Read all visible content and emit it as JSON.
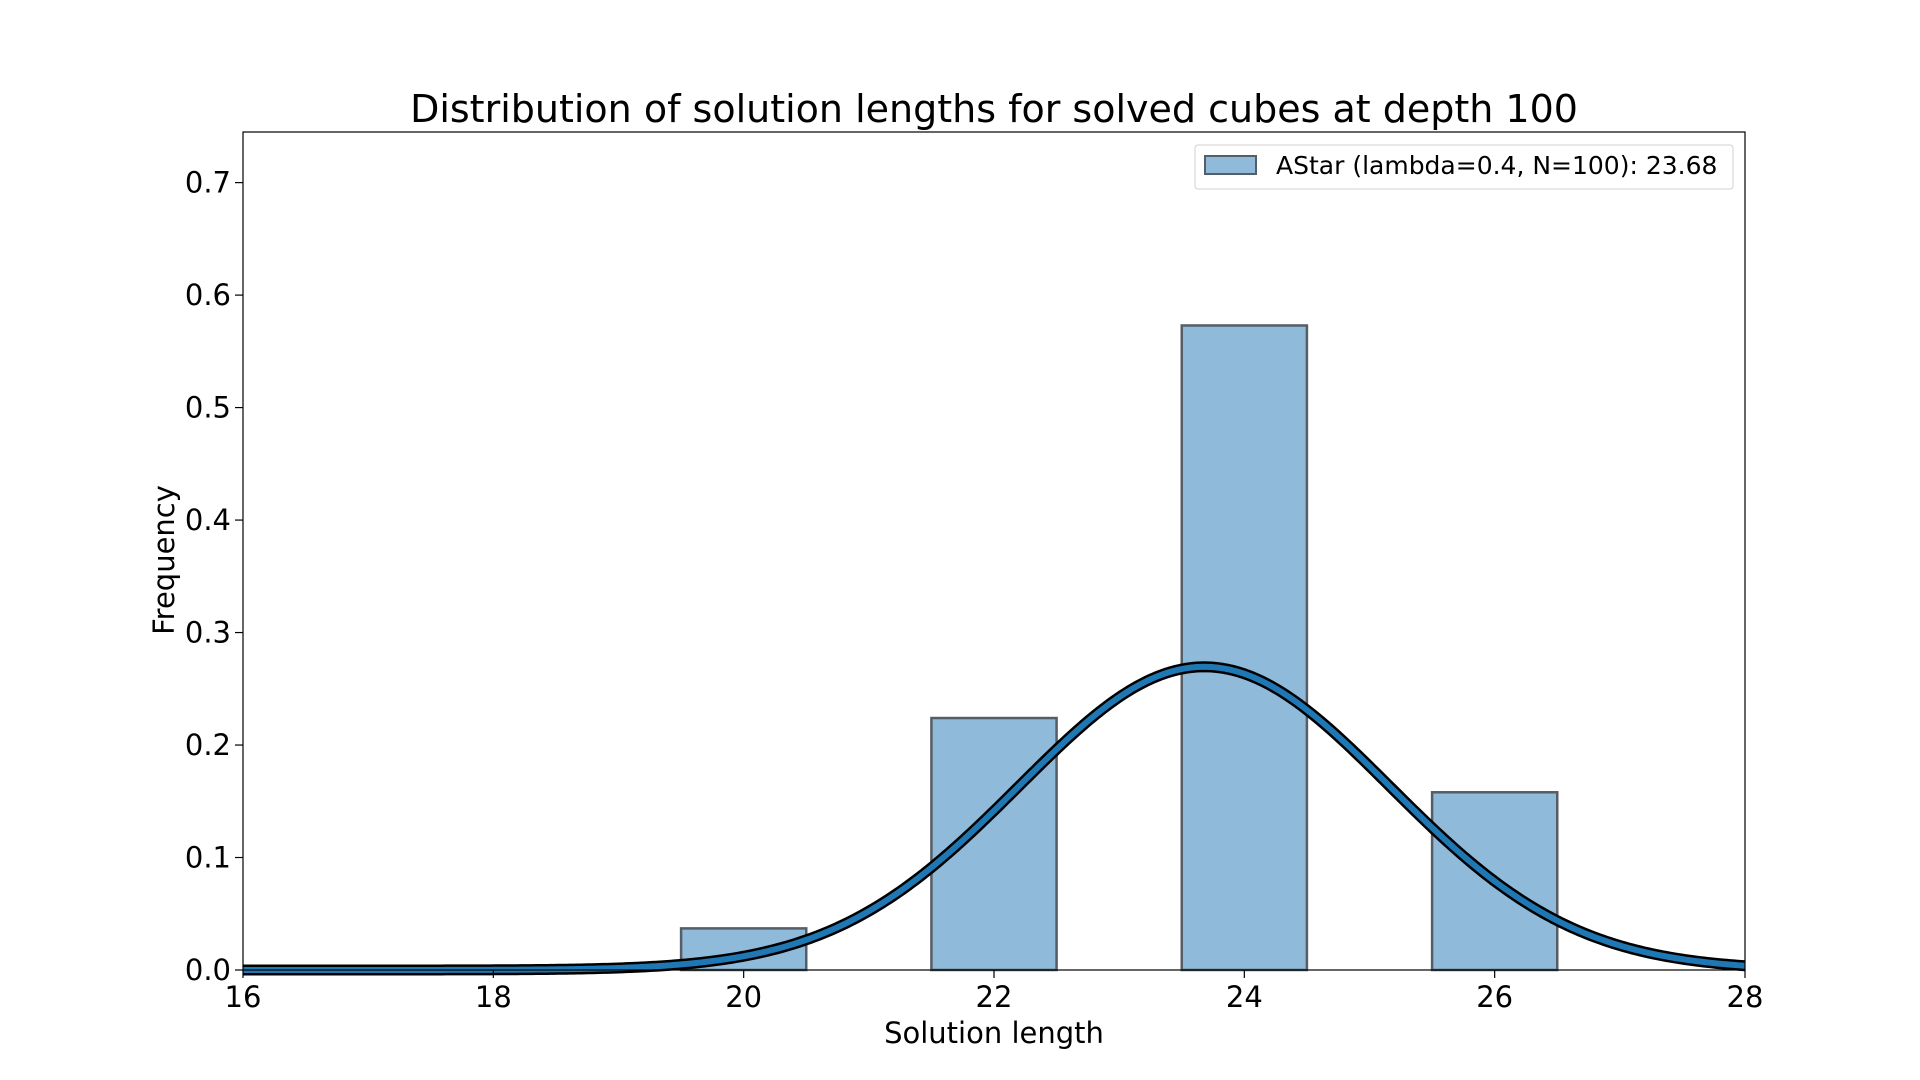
{
  "chart_data": {
    "type": "bar",
    "title": "Distribution of solution lengths for solved cubes at depth 100",
    "xlabel": "Solution length",
    "ylabel": "Frequency",
    "xlim": [
      16,
      28
    ],
    "ylim": [
      0.0,
      0.745
    ],
    "xticks": [
      16,
      18,
      20,
      22,
      24,
      26,
      28
    ],
    "yticks": [
      0.0,
      0.1,
      0.2,
      0.3,
      0.4,
      0.5,
      0.6,
      0.7
    ],
    "grid": false,
    "legend_position": "top-right",
    "bars": {
      "name": "AStar (lambda=0.4, N=100): 23.68",
      "bin_width": 1,
      "centers": [
        20,
        22,
        24,
        26
      ],
      "values": [
        0.037,
        0.224,
        0.573,
        0.158
      ],
      "color": "#8fbad9",
      "edge_color": "#555e66"
    },
    "curve": {
      "type": "normal_density",
      "mean": 23.68,
      "std": 1.48,
      "color": "#1f77b4",
      "edge_color": "#000000"
    }
  }
}
